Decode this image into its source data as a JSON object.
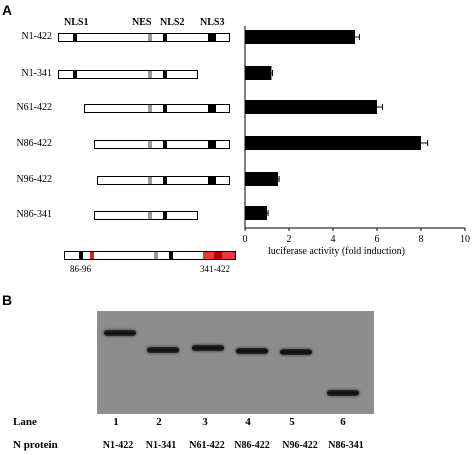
{
  "panels": {
    "a": "A",
    "b": "B"
  },
  "domain_labels": {
    "nls1": "NLS1",
    "nes": "NES",
    "nls2": "NLS2",
    "nls3": "NLS3"
  },
  "constructs": [
    {
      "name": "N1-422"
    },
    {
      "name": "N1-341"
    },
    {
      "name": "N61-422"
    },
    {
      "name": "N86-422"
    },
    {
      "name": "N96-422"
    },
    {
      "name": "N86-341"
    }
  ],
  "schematic_labels": {
    "left": "86-96",
    "right": "341-422"
  },
  "chart_data": {
    "type": "bar",
    "orientation": "horizontal",
    "categories": [
      "N1-422",
      "N1-341",
      "N61-422",
      "N86-422",
      "N96-422",
      "N86-341"
    ],
    "values": [
      5.0,
      1.2,
      6.0,
      8.0,
      1.5,
      1.0
    ],
    "errors": [
      0.2,
      0.05,
      0.25,
      0.3,
      0.05,
      0.05
    ],
    "xlabel": "luciferase activity (fold induction)",
    "xlim": [
      0,
      10
    ],
    "ticks": [
      0,
      2,
      4,
      6,
      8,
      10
    ],
    "bar_color": "#000000"
  },
  "blot": {
    "lane_title": "Lane",
    "protein_title": "N protein",
    "lanes": [
      "1",
      "2",
      "3",
      "4",
      "5",
      "6"
    ],
    "proteins": [
      "N1-422",
      "N1-341",
      "N61-422",
      "N86-422",
      "N96-422",
      "N86-341"
    ]
  }
}
